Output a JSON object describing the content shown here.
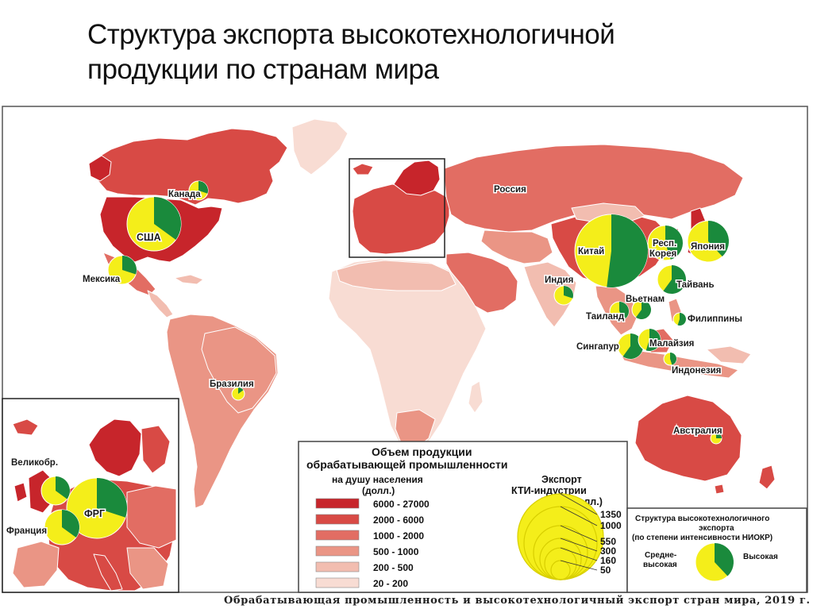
{
  "title": {
    "line1": "Структура экспорта высокотехнологичной",
    "line2": "продукции по странам  мира"
  },
  "map_labels": {
    "canada": "Канада",
    "usa": "США",
    "mexico": "Мексика",
    "russia": "Россия",
    "china": "Китай",
    "korea_line1": "Респ.",
    "korea_line2": "Корея",
    "japan": "Япония",
    "india": "Индия",
    "taiwan": "Тайвань",
    "vietnam": "Вьетнам",
    "thailand": "Таиланд",
    "philippines": "Филиппины",
    "singapore": "Сингапур",
    "malaysia": "Малайзия",
    "indonesia": "Индонезия",
    "brazil": "Бразилия",
    "australia": "Австралия",
    "uk": "Великобр.",
    "germany": "ФРГ",
    "france": "Франция"
  },
  "legend": {
    "manufacturing_title_line1": "Объем продукции",
    "manufacturing_title_line2": "обрабатывающей промышленности",
    "per_capita_line1": "на душу населения",
    "per_capita_line2": "(долл.)",
    "classes": [
      {
        "range": "6000 - 27000",
        "color": "#c7252b"
      },
      {
        "range": "2000 -   6000",
        "color": "#d84a45"
      },
      {
        "range": "1000 -   2000",
        "color": "#e26d63"
      },
      {
        "range": "500 -   1000",
        "color": "#ea9585"
      },
      {
        "range": "200 -     500",
        "color": "#f2bdb0"
      },
      {
        "range": "20 -     200",
        "color": "#f8dcd3"
      }
    ],
    "export_title_line1": "Экспорт",
    "export_title_line2": "КТИ-индустрии",
    "export_title_line3": "(млрд долл.)",
    "export_values": [
      "1350",
      "1000",
      "550",
      "300",
      "160",
      "50"
    ],
    "structure_title_line1": "Структура высокотехнологичного",
    "structure_title_line2": "экспорта",
    "structure_title_line3": "(по степени интенсивности НИОКР)",
    "medium_high_line1": "Средне-",
    "medium_high_line2": "высокая",
    "high": "Высокая"
  },
  "colors": {
    "pie_yellow": "#f4ee1a",
    "pie_green": "#1a8a3c"
  },
  "caption": "Обрабатывающая промышленность и высокотехнологичный экспорт стран мира, 2019  г."
}
